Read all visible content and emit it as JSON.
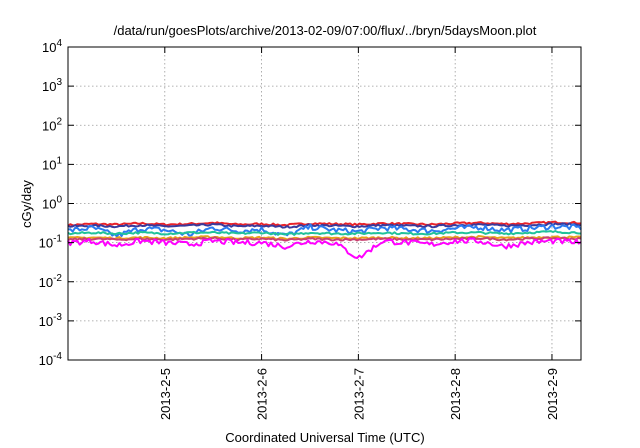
{
  "chart_data": {
    "type": "line",
    "title": "/data/run/goesPlots/archive/2013-02-09/07:00/flux/../bryn/5daysMoon.plot",
    "xlabel": "Coordinated Universal Time (UTC)",
    "ylabel": "cGy/day",
    "yscale": "log",
    "ylim": [
      0.0001,
      10000
    ],
    "xlim": [
      4.0,
      9.3
    ],
    "x_unit": "day of February 2013",
    "grid": true,
    "legend": "none",
    "x_ticks": [
      {
        "value": 5,
        "label": "2013-2-5"
      },
      {
        "value": 6,
        "label": "2013-2-6"
      },
      {
        "value": 7,
        "label": "2013-2-7"
      },
      {
        "value": 8,
        "label": "2013-2-8"
      },
      {
        "value": 9,
        "label": "2013-2-9"
      }
    ],
    "y_ticks": [
      {
        "value": 0.0001,
        "base": "10",
        "exp": "-4"
      },
      {
        "value": 0.001,
        "base": "10",
        "exp": "-3"
      },
      {
        "value": 0.01,
        "base": "10",
        "exp": "-2"
      },
      {
        "value": 0.1,
        "base": "10",
        "exp": "-1"
      },
      {
        "value": 1,
        "base": "10",
        "exp": "0"
      },
      {
        "value": 10,
        "base": "10",
        "exp": "1"
      },
      {
        "value": 100,
        "base": "10",
        "exp": "2"
      },
      {
        "value": 1000,
        "base": "10",
        "exp": "3"
      },
      {
        "value": 10000,
        "base": "10",
        "exp": "4"
      }
    ],
    "x": [
      4.0,
      4.25,
      4.5,
      4.75,
      5.0,
      5.25,
      5.5,
      5.75,
      6.0,
      6.25,
      6.5,
      6.75,
      7.0,
      7.25,
      7.5,
      7.75,
      8.0,
      8.25,
      8.5,
      8.75,
      9.0,
      9.3
    ],
    "series": [
      {
        "color": "#e8232b",
        "values": [
          0.28,
          0.3,
          0.29,
          0.31,
          0.29,
          0.3,
          0.32,
          0.29,
          0.3,
          0.28,
          0.31,
          0.3,
          0.29,
          0.31,
          0.3,
          0.29,
          0.31,
          0.32,
          0.3,
          0.31,
          0.33,
          0.32
        ]
      },
      {
        "color": "#3a3a9c",
        "values": [
          0.26,
          0.27,
          0.26,
          0.28,
          0.26,
          0.27,
          0.29,
          0.26,
          0.27,
          0.25,
          0.28,
          0.27,
          0.26,
          0.28,
          0.27,
          0.26,
          0.28,
          0.29,
          0.27,
          0.28,
          0.3,
          0.29
        ]
      },
      {
        "color": "#2b7bf0",
        "values": [
          0.2,
          0.24,
          0.15,
          0.23,
          0.21,
          0.16,
          0.24,
          0.2,
          0.22,
          0.15,
          0.25,
          0.21,
          0.19,
          0.24,
          0.22,
          0.2,
          0.23,
          0.25,
          0.21,
          0.23,
          0.26,
          0.24
        ]
      },
      {
        "color": "#20c29a",
        "values": [
          0.17,
          0.18,
          0.17,
          0.18,
          0.17,
          0.18,
          0.18,
          0.17,
          0.18,
          0.16,
          0.18,
          0.17,
          0.17,
          0.18,
          0.17,
          0.17,
          0.18,
          0.18,
          0.17,
          0.18,
          0.19,
          0.18
        ]
      },
      {
        "color": "#e6a21c",
        "values": [
          0.13,
          0.135,
          0.13,
          0.135,
          0.13,
          0.135,
          0.14,
          0.13,
          0.135,
          0.125,
          0.135,
          0.13,
          0.13,
          0.135,
          0.13,
          0.13,
          0.135,
          0.14,
          0.13,
          0.135,
          0.14,
          0.135
        ]
      },
      {
        "color": "#c8406f",
        "values": [
          0.12,
          0.125,
          0.12,
          0.125,
          0.12,
          0.125,
          0.13,
          0.12,
          0.125,
          0.115,
          0.125,
          0.12,
          0.12,
          0.125,
          0.12,
          0.12,
          0.125,
          0.13,
          0.12,
          0.125,
          0.13,
          0.125
        ]
      },
      {
        "color": "#ff00ff",
        "values": [
          0.1,
          0.11,
          0.085,
          0.11,
          0.1,
          0.09,
          0.11,
          0.1,
          0.1,
          0.08,
          0.11,
          0.1,
          0.04,
          0.11,
          0.1,
          0.09,
          0.11,
          0.11,
          0.08,
          0.1,
          0.11,
          0.1
        ]
      }
    ]
  }
}
